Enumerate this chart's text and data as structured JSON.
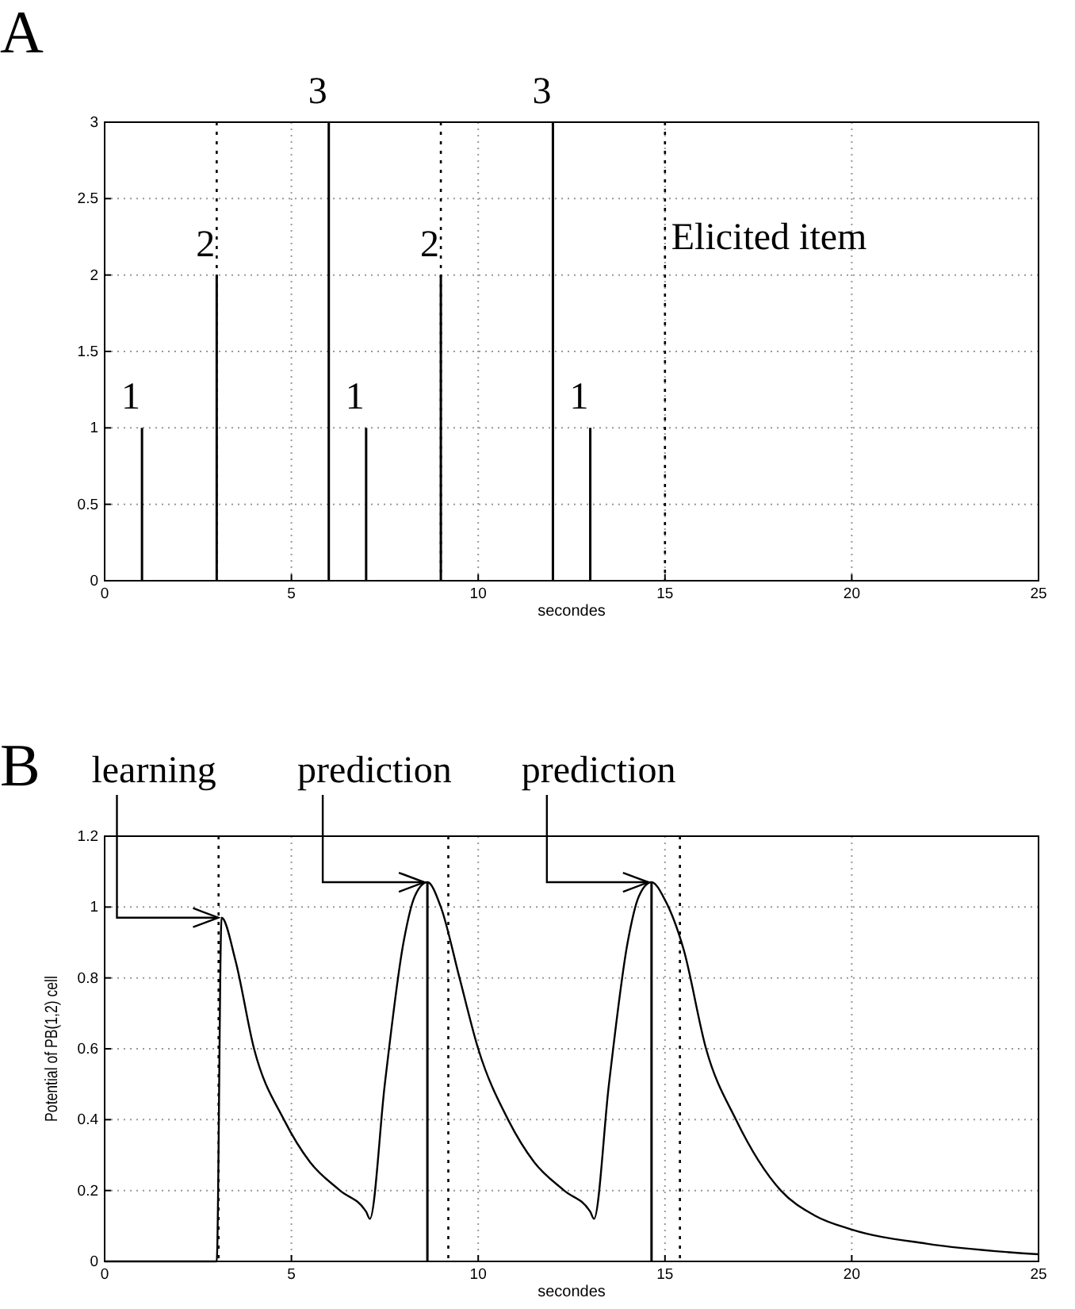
{
  "chart_data": [
    {
      "type": "bar",
      "title": "A",
      "xlabel": "secondes",
      "x": [
        1,
        3,
        6,
        7,
        9,
        12,
        13
      ],
      "values": [
        1,
        2,
        3,
        1,
        2,
        3,
        1
      ],
      "color": "#000000",
      "data_labels": true,
      "xlim": [
        0,
        25
      ],
      "ylim": [
        0,
        3
      ],
      "xticks": [
        0,
        5,
        10,
        15,
        20,
        25
      ],
      "yticks": [
        0,
        0.5,
        1,
        1.5,
        2,
        2.5,
        3
      ],
      "grid": true,
      "ref_lines": [
        {
          "axis": "x",
          "value": 3,
          "line_style": "dotted",
          "color": "#000000"
        },
        {
          "axis": "x",
          "value": 9,
          "line_style": "dotted",
          "color": "#000000"
        },
        {
          "axis": "x",
          "value": 15,
          "label": "Elicited item",
          "line_style": "dotted",
          "color": "#000000"
        }
      ]
    },
    {
      "type": "line",
      "title": "B",
      "xlabel": "secondes",
      "ylabel": "Potential of PB(1,2) cell",
      "xlim": [
        0,
        25
      ],
      "ylim": [
        0,
        1.2
      ],
      "xticks": [
        0,
        5,
        10,
        15,
        20,
        25
      ],
      "yticks": [
        0,
        0.2,
        0.4,
        0.6,
        0.8,
        1,
        1.2
      ],
      "grid": true,
      "series": [
        {
          "color": "#000000",
          "x": [
            0,
            3.0,
            3.13,
            3.5,
            4,
            4.8,
            5.5,
            6.3,
            7.0,
            7.1,
            7.5,
            8,
            8.3,
            8.64,
            9,
            9.5,
            10,
            10.8,
            11.5,
            12.3,
            13.0,
            13.1,
            13.5,
            14,
            14.3,
            14.64,
            15,
            15.5,
            16.1,
            16.9,
            18.1,
            19,
            20,
            22,
            25
          ],
          "values": [
            0,
            0,
            0.97,
            0.85,
            0.6,
            0.4,
            0.28,
            0.2,
            0.14,
            0.12,
            0.5,
            0.9,
            1.03,
            1.07,
            1.0,
            0.8,
            0.6,
            0.4,
            0.28,
            0.2,
            0.14,
            0.12,
            0.5,
            0.9,
            1.03,
            1.07,
            1.02,
            0.88,
            0.6,
            0.4,
            0.2,
            0.13,
            0.09,
            0.05,
            0.02
          ]
        },
        {
          "type": "bar",
          "color": "#000000",
          "x": [
            8.64,
            14.64
          ],
          "values": [
            1.07,
            1.07
          ]
        }
      ],
      "ref_lines": [
        {
          "axis": "x",
          "value": 3.05,
          "line_style": "dotted",
          "color": "#000000"
        },
        {
          "axis": "x",
          "value": 9.2,
          "line_style": "dotted",
          "color": "#000000"
        },
        {
          "axis": "x",
          "value": 15.4,
          "line_style": "dotted",
          "color": "#000000"
        }
      ],
      "annotations": [
        {
          "text": "learning",
          "x": 3.13,
          "y": 0.97
        },
        {
          "text": "prediction",
          "x": 8.64,
          "y": 1.07
        },
        {
          "text": "prediction",
          "x": 14.64,
          "y": 1.07
        }
      ]
    }
  ]
}
